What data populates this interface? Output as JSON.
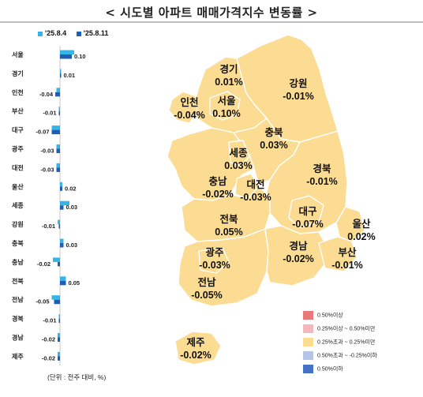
{
  "title": "< 시도별 아파트 매매가격지수 변동률 >",
  "legend": [
    {
      "label": "'25.8.4",
      "color": "#33B5E8"
    },
    {
      "label": "'25.8.11",
      "color": "#1F5FB0"
    }
  ],
  "unit_note": "(단위 : 전주 대비, %)",
  "chart_data": {
    "type": "bar",
    "orientation": "horizontal",
    "categories": [
      "서울",
      "경기",
      "인천",
      "부산",
      "대구",
      "광주",
      "대전",
      "울산",
      "세종",
      "강원",
      "충북",
      "충남",
      "전북",
      "전남",
      "경북",
      "경남",
      "제주"
    ],
    "series": [
      {
        "name": "'25.8.4",
        "values": [
          0.12,
          0.01,
          -0.03,
          -0.01,
          -0.07,
          -0.03,
          -0.03,
          0.02,
          0.08,
          -0.02,
          0.03,
          -0.06,
          0.05,
          -0.07,
          -0.01,
          -0.02,
          -0.02
        ]
      },
      {
        "name": "'25.8.11",
        "values": [
          0.1,
          0.01,
          -0.04,
          -0.01,
          -0.07,
          -0.03,
          -0.03,
          0.02,
          0.03,
          -0.01,
          0.03,
          -0.02,
          0.05,
          -0.05,
          -0.01,
          -0.02,
          -0.02
        ]
      }
    ],
    "data_labels": [
      "0.10",
      "0.01",
      "-0.04",
      "-0.01",
      "-0.07",
      "-0.03",
      "-0.03",
      "0.02",
      "0.03",
      "-0.01",
      "0.03",
      "-0.02",
      "0.05",
      "-0.05",
      "-0.01",
      "-0.02",
      "-0.02"
    ]
  },
  "map": {
    "regions": [
      {
        "name": "경기",
        "value": "0.01%"
      },
      {
        "name": "강원",
        "value": "-0.01%"
      },
      {
        "name": "인천",
        "value": "-0.04%"
      },
      {
        "name": "서울",
        "value": "0.10%"
      },
      {
        "name": "충북",
        "value": "0.03%"
      },
      {
        "name": "세종",
        "value": "0.03%"
      },
      {
        "name": "경북",
        "value": "-0.01%"
      },
      {
        "name": "충남",
        "value": "-0.02%"
      },
      {
        "name": "대전",
        "value": "-0.03%"
      },
      {
        "name": "전북",
        "value": "0.05%"
      },
      {
        "name": "대구",
        "value": "-0.07%"
      },
      {
        "name": "울산",
        "value": "0.02%"
      },
      {
        "name": "광주",
        "value": "-0.03%"
      },
      {
        "name": "경남",
        "value": "-0.02%"
      },
      {
        "name": "부산",
        "value": "-0.01%"
      },
      {
        "name": "전남",
        "value": "-0.05%"
      },
      {
        "name": "제주",
        "value": "-0.02%"
      }
    ],
    "region_color": "#FBDC92",
    "legend": [
      {
        "label": "0.50%이상",
        "color": "#E8787A"
      },
      {
        "label": "0.25%이상 ~ 0.50%미만",
        "color": "#F4B7BE"
      },
      {
        "label": "0.25%초과 ~ 0.25%미만",
        "color": "#FBDC92"
      },
      {
        "label": "0.50%초과 ~ -0.25%이하",
        "color": "#B4C6E7"
      },
      {
        "label": "0.50%이하",
        "color": "#4472C4"
      }
    ]
  }
}
